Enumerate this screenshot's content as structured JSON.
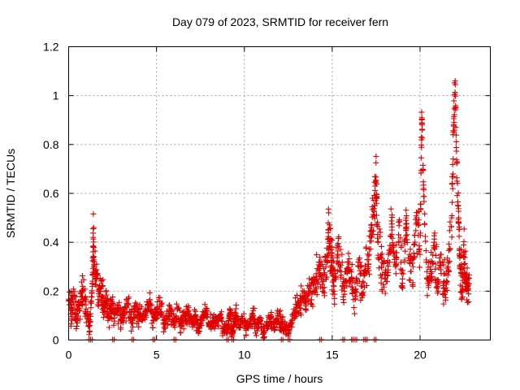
{
  "chart_data": {
    "type": "scatter",
    "title": "Day 079 of 2023, SRMTID for receiver fern",
    "xlabel": "GPS time / hours",
    "ylabel": "SRMTID / TECUs",
    "xlim": [
      0,
      24
    ],
    "ylim": [
      0,
      1.2
    ],
    "xticks": [
      0,
      5,
      10,
      15,
      20
    ],
    "xtick_labels": [
      "0",
      "5",
      "10",
      "15",
      "20"
    ],
    "yticks": [
      0,
      0.2,
      0.4,
      0.6,
      0.8,
      1.0,
      1.2
    ],
    "ytick_labels": [
      "0",
      "0.2",
      "0.4",
      "0.6",
      "0.8",
      "1",
      "1.2"
    ],
    "grid": true,
    "marker": "+",
    "colors": {
      "series": "#e00000"
    },
    "series": [
      {
        "name": "SRMTID",
        "x": [
          0.0,
          0.15,
          0.3,
          0.45,
          0.6,
          0.75,
          0.9,
          1.05,
          1.2,
          1.35,
          1.4,
          1.45,
          1.6,
          1.75,
          1.9,
          2.0,
          2.15,
          2.3,
          2.45,
          2.6,
          2.8,
          3.0,
          3.2,
          3.4,
          3.6,
          3.8,
          4.0,
          4.2,
          4.4,
          4.6,
          4.8,
          5.0,
          5.2,
          5.4,
          5.6,
          5.8,
          6.0,
          6.2,
          6.4,
          6.6,
          6.8,
          7.0,
          7.2,
          7.4,
          7.6,
          7.8,
          8.0,
          8.2,
          8.4,
          8.6,
          8.8,
          9.0,
          9.1,
          9.2,
          9.3,
          9.4,
          9.5,
          9.7,
          9.9,
          10.1,
          10.3,
          10.5,
          10.7,
          10.9,
          11.1,
          11.3,
          11.5,
          11.7,
          11.9,
          12.1,
          12.3,
          12.5,
          12.7,
          12.9,
          13.1,
          13.3,
          13.5,
          13.7,
          13.9,
          14.1,
          14.3,
          14.5,
          14.7,
          14.8,
          14.9,
          15.0,
          15.1,
          15.3,
          15.5,
          15.7,
          15.9,
          16.1,
          16.3,
          16.5,
          16.7,
          16.9,
          17.1,
          17.25,
          17.4,
          17.5,
          17.6,
          17.8,
          18.0,
          18.2,
          18.4,
          18.6,
          18.8,
          19.0,
          19.2,
          19.4,
          19.6,
          19.8,
          20.0,
          20.1,
          20.2,
          20.4,
          20.6,
          20.8,
          21.0,
          21.2,
          21.4,
          21.6,
          21.8,
          21.9,
          22.0,
          22.1,
          22.2,
          22.3,
          22.4,
          22.5,
          22.6,
          22.7
        ],
        "y": [
          0.16,
          0.12,
          0.18,
          0.08,
          0.14,
          0.2,
          0.17,
          0.1,
          0.06,
          0.22,
          0.42,
          0.3,
          0.25,
          0.18,
          0.22,
          0.12,
          0.16,
          0.1,
          0.14,
          0.09,
          0.12,
          0.08,
          0.11,
          0.15,
          0.07,
          0.13,
          0.1,
          0.09,
          0.12,
          0.16,
          0.08,
          0.11,
          0.14,
          0.07,
          0.1,
          0.12,
          0.08,
          0.13,
          0.06,
          0.09,
          0.11,
          0.07,
          0.1,
          0.05,
          0.08,
          0.12,
          0.06,
          0.09,
          0.07,
          0.1,
          0.05,
          0.04,
          0.08,
          0.12,
          0.02,
          0.06,
          0.1,
          0.05,
          0.09,
          0.04,
          0.07,
          0.1,
          0.05,
          0.08,
          0.03,
          0.06,
          0.09,
          0.04,
          0.1,
          0.07,
          0.05,
          0.03,
          0.08,
          0.12,
          0.15,
          0.18,
          0.14,
          0.22,
          0.2,
          0.26,
          0.3,
          0.24,
          0.32,
          0.45,
          0.38,
          0.3,
          0.22,
          0.35,
          0.28,
          0.2,
          0.32,
          0.25,
          0.18,
          0.3,
          0.22,
          0.28,
          0.35,
          0.45,
          0.55,
          0.65,
          0.4,
          0.3,
          0.25,
          0.35,
          0.45,
          0.3,
          0.4,
          0.25,
          0.45,
          0.35,
          0.3,
          0.5,
          0.35,
          0.91,
          0.62,
          0.25,
          0.3,
          0.4,
          0.22,
          0.35,
          0.2,
          0.3,
          0.5,
          0.85,
          1.06,
          0.65,
          0.5,
          0.3,
          0.2,
          0.35,
          0.25,
          0.22
        ],
        "spread": [
          0.06,
          0.05,
          0.07,
          0.04,
          0.06,
          0.07,
          0.05,
          0.04,
          0.03,
          0.06,
          0.1,
          0.08,
          0.06,
          0.05,
          0.06,
          0.04,
          0.05,
          0.04,
          0.05,
          0.03,
          0.04,
          0.03,
          0.04,
          0.05,
          0.03,
          0.04,
          0.04,
          0.03,
          0.04,
          0.05,
          0.03,
          0.04,
          0.05,
          0.03,
          0.04,
          0.04,
          0.03,
          0.04,
          0.03,
          0.03,
          0.04,
          0.03,
          0.04,
          0.02,
          0.03,
          0.04,
          0.03,
          0.03,
          0.03,
          0.04,
          0.02,
          0.02,
          0.03,
          0.04,
          0.01,
          0.03,
          0.04,
          0.02,
          0.03,
          0.02,
          0.03,
          0.04,
          0.02,
          0.03,
          0.02,
          0.03,
          0.03,
          0.02,
          0.04,
          0.03,
          0.02,
          0.02,
          0.03,
          0.04,
          0.05,
          0.05,
          0.05,
          0.06,
          0.06,
          0.07,
          0.08,
          0.07,
          0.09,
          0.1,
          0.09,
          0.08,
          0.07,
          0.09,
          0.08,
          0.06,
          0.08,
          0.07,
          0.05,
          0.08,
          0.06,
          0.08,
          0.09,
          0.1,
          0.1,
          0.08,
          0.1,
          0.08,
          0.07,
          0.09,
          0.1,
          0.08,
          0.1,
          0.07,
          0.1,
          0.09,
          0.08,
          0.1,
          0.08,
          0.02,
          0.03,
          0.06,
          0.08,
          0.1,
          0.06,
          0.09,
          0.06,
          0.08,
          0.1,
          0.08,
          0.03,
          0.08,
          0.1,
          0.08,
          0.06,
          0.09,
          0.07,
          0.06
        ],
        "zero_markers_x": [
          1.15,
          1.25,
          2.5,
          3.6,
          4.8,
          6.0,
          9.0,
          9.3,
          12.1,
          12.5,
          14.3,
          15.6,
          16.1,
          16.3,
          16.8,
          16.9,
          17.4
        ]
      }
    ]
  }
}
